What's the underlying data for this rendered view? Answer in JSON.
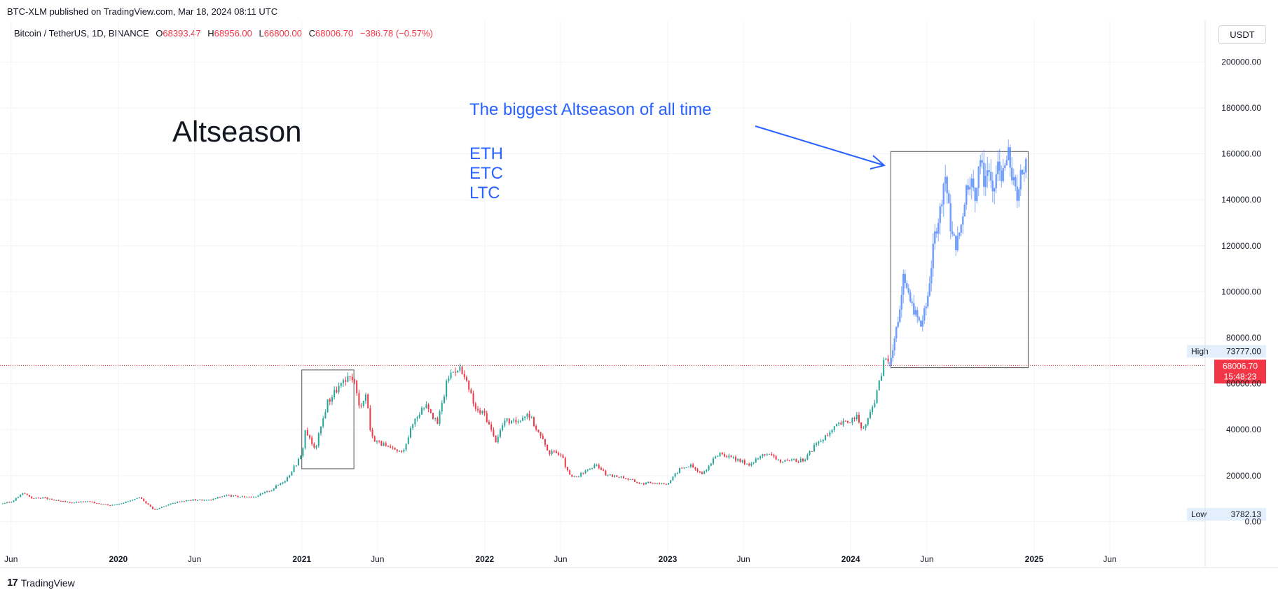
{
  "header": {
    "published": "BTC-XLM published on TradingView.com, Mar 18, 2024 08:11 UTC",
    "symbol": "Bitcoin / TetherUS, 1D, BINANCE",
    "open_label": "O",
    "open": "68393.47",
    "high_label": "H",
    "high": "68956.00",
    "low_label": "L",
    "low": "66800.00",
    "close_label": "C",
    "close": "68006.70",
    "change": "−386.78 (−0.57%)",
    "currency": "USDT"
  },
  "footer": {
    "brand": "TradingView",
    "logo": "17"
  },
  "colors": {
    "up": "#26a69a",
    "down": "#f23645",
    "projection": "#5b8ff9",
    "annotation": "#2962ff",
    "box": "#555555"
  },
  "chart_data": {
    "type": "line",
    "title": "",
    "xlabel": "",
    "ylabel": "",
    "ylim": [
      -20000,
      205000
    ],
    "x_ticks": [
      {
        "label": "Jun",
        "date": "2019-06-01",
        "bold": false
      },
      {
        "label": "2020",
        "date": "2020-01-01",
        "bold": true
      },
      {
        "label": "Jun",
        "date": "2020-06-01",
        "bold": false
      },
      {
        "label": "2021",
        "date": "2021-01-01",
        "bold": true
      },
      {
        "label": "Jun",
        "date": "2021-06-01",
        "bold": false
      },
      {
        "label": "2022",
        "date": "2022-01-01",
        "bold": true
      },
      {
        "label": "Jun",
        "date": "2022-06-01",
        "bold": false
      },
      {
        "label": "2023",
        "date": "2023-01-01",
        "bold": true
      },
      {
        "label": "Jun",
        "date": "2023-06-01",
        "bold": false
      },
      {
        "label": "2024",
        "date": "2024-01-01",
        "bold": true
      },
      {
        "label": "Jun",
        "date": "2024-06-01",
        "bold": false
      },
      {
        "label": "2025",
        "date": "2025-01-01",
        "bold": true
      },
      {
        "label": "Jun",
        "date": "2025-06-01",
        "bold": false
      }
    ],
    "y_ticks": [
      "200000.00",
      "180000.00",
      "160000.00",
      "140000.00",
      "120000.00",
      "100000.00",
      "80000.00",
      "60000.00",
      "40000.00",
      "20000.00",
      "0.00"
    ],
    "series": [
      {
        "name": "",
        "kind": "historical",
        "x": [
          "2019-05-15",
          "2019-06-01",
          "2019-06-26",
          "2019-07-15",
          "2019-08-01",
          "2019-09-01",
          "2019-10-01",
          "2019-11-01",
          "2019-12-17",
          "2020-01-15",
          "2020-02-14",
          "2020-03-13",
          "2020-04-01",
          "2020-05-01",
          "2020-06-01",
          "2020-07-01",
          "2020-08-01",
          "2020-09-01",
          "2020-10-01",
          "2020-11-01",
          "2020-12-01",
          "2021-01-01",
          "2021-01-08",
          "2021-01-27",
          "2021-02-21",
          "2021-03-13",
          "2021-04-14",
          "2021-04-25",
          "2021-05-10",
          "2021-05-19",
          "2021-06-01",
          "2021-06-22",
          "2021-07-20",
          "2021-08-15",
          "2021-09-07",
          "2021-09-28",
          "2021-10-20",
          "2021-11-10",
          "2021-12-01",
          "2021-12-15",
          "2022-01-01",
          "2022-01-22",
          "2022-02-10",
          "2022-03-01",
          "2022-03-28",
          "2022-04-15",
          "2022-05-10",
          "2022-06-01",
          "2022-06-18",
          "2022-07-01",
          "2022-08-01",
          "2022-08-15",
          "2022-09-01",
          "2022-10-01",
          "2022-11-09",
          "2022-12-01",
          "2023-01-01",
          "2023-01-25",
          "2023-02-15",
          "2023-03-10",
          "2023-04-14",
          "2023-05-15",
          "2023-06-15",
          "2023-07-15",
          "2023-08-17",
          "2023-09-15",
          "2023-10-01",
          "2023-10-24",
          "2023-11-15",
          "2023-12-05",
          "2024-01-01",
          "2024-01-11",
          "2024-01-23",
          "2024-02-10",
          "2024-02-28",
          "2024-03-05",
          "2024-03-14",
          "2024-03-18"
        ],
        "values": [
          8000,
          8500,
          12500,
          10000,
          10500,
          9000,
          8300,
          8700,
          7100,
          8500,
          10300,
          5000,
          6800,
          8800,
          9500,
          9300,
          11500,
          10700,
          11000,
          13800,
          18500,
          29000,
          40000,
          31000,
          52000,
          58000,
          63500,
          50000,
          56000,
          37000,
          35000,
          32000,
          30000,
          45000,
          52000,
          42000,
          63000,
          68000,
          57000,
          48000,
          47000,
          35000,
          44000,
          43000,
          47500,
          40000,
          30000,
          30000,
          20000,
          19000,
          23500,
          24500,
          20000,
          19500,
          16500,
          17000,
          16500,
          23000,
          24500,
          20500,
          30000,
          27000,
          25000,
          30000,
          26000,
          26500,
          27000,
          34000,
          37000,
          42000,
          44000,
          46500,
          39500,
          47000,
          61000,
          68000,
          73000,
          68006
        ]
      },
      {
        "name": "",
        "kind": "projection",
        "x": [
          "2024-03-18",
          "2024-03-24",
          "2024-04-08",
          "2024-04-15",
          "2024-04-24",
          "2024-05-06",
          "2024-05-20",
          "2024-06-01",
          "2024-06-17",
          "2024-06-27",
          "2024-07-07",
          "2024-07-20",
          "2024-07-30",
          "2024-08-09",
          "2024-08-18",
          "2024-08-27",
          "2024-09-05",
          "2024-09-14",
          "2024-09-23",
          "2024-10-02",
          "2024-10-10",
          "2024-10-20",
          "2024-10-31",
          "2024-11-10",
          "2024-11-18",
          "2024-11-28",
          "2024-12-05",
          "2024-12-12",
          "2024-12-18"
        ],
        "values": [
          68000,
          75000,
          92000,
          110000,
          98000,
          92000,
          85000,
          95000,
          125000,
          135000,
          152000,
          125000,
          120000,
          130000,
          145000,
          150000,
          140000,
          160000,
          148000,
          155000,
          140000,
          155000,
          150000,
          160000,
          150000,
          140000,
          155000,
          150000,
          158000
        ]
      }
    ],
    "current_price": {
      "value": 68006.7,
      "label": "68006.70",
      "countdown": "15:48:23"
    },
    "high_marker": {
      "label": "High",
      "value": 73777.0,
      "value_label": "73777.00"
    },
    "low_marker": {
      "label": "Low",
      "value": 3782.13,
      "value_label": "3782.13"
    },
    "boxes": [
      {
        "x0": "2021-01-01",
        "x1": "2021-04-15",
        "y0": 23000,
        "y1": 66000
      },
      {
        "x0": "2024-03-21",
        "x1": "2024-12-20",
        "y0": 67000,
        "y1": 161000
      }
    ],
    "annotations": {
      "title": "Altseason",
      "headline": "The biggest Altseason of all time",
      "coins": [
        "ETH",
        "ETC",
        "LTC"
      ]
    }
  }
}
